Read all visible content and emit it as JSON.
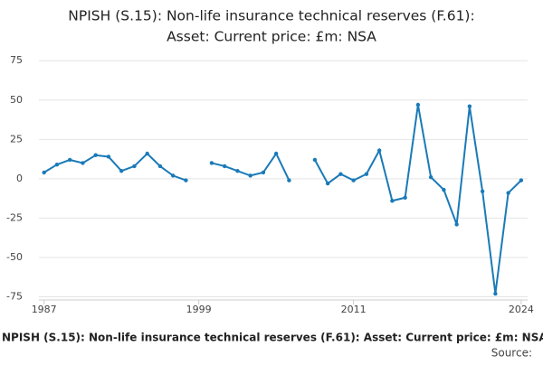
{
  "chart_data": {
    "type": "line",
    "title": [
      "NPISH (S.15): Non-life insurance technical reserves (F.61):",
      "Asset: Current price: £m: NSA"
    ],
    "footer_title": "NPISH (S.15): Non-life insurance technical reserves (F.61): Asset: Current price: £m: NSA",
    "source": "Source:",
    "x": [
      1987,
      1988,
      1989,
      1990,
      1991,
      1992,
      1993,
      1994,
      1995,
      1996,
      1997,
      1998,
      1999,
      2000,
      2001,
      2002,
      2003,
      2004,
      2005,
      2006,
      2007,
      2008,
      2009,
      2010,
      2011,
      2012,
      2013,
      2014,
      2015,
      2016,
      2017,
      2018,
      2019,
      2020,
      2021,
      2022,
      2023,
      2024
    ],
    "series": [
      {
        "name": "NPISH (S.15): Non-life insurance technical reserves (F.61): Asset: Current price: £m: NSA",
        "color": "#1a7ab8",
        "values": [
          4,
          9,
          12,
          10,
          15,
          14,
          5,
          8,
          16,
          8,
          2,
          -1,
          null,
          10,
          8,
          5,
          2,
          4,
          16,
          -1,
          null,
          12,
          -3,
          3,
          -1,
          3,
          18,
          -14,
          -12,
          47,
          1,
          -7,
          -29,
          46,
          -8,
          -73,
          -9,
          -1
        ]
      }
    ],
    "xlim": [
      1986.6,
      2024.5
    ],
    "xticks": [
      1987,
      1999,
      2011,
      2024
    ],
    "ylim": [
      -77,
      78
    ],
    "yticks": [
      -75,
      -50,
      -25,
      0,
      25,
      50,
      75
    ],
    "grid": true
  }
}
